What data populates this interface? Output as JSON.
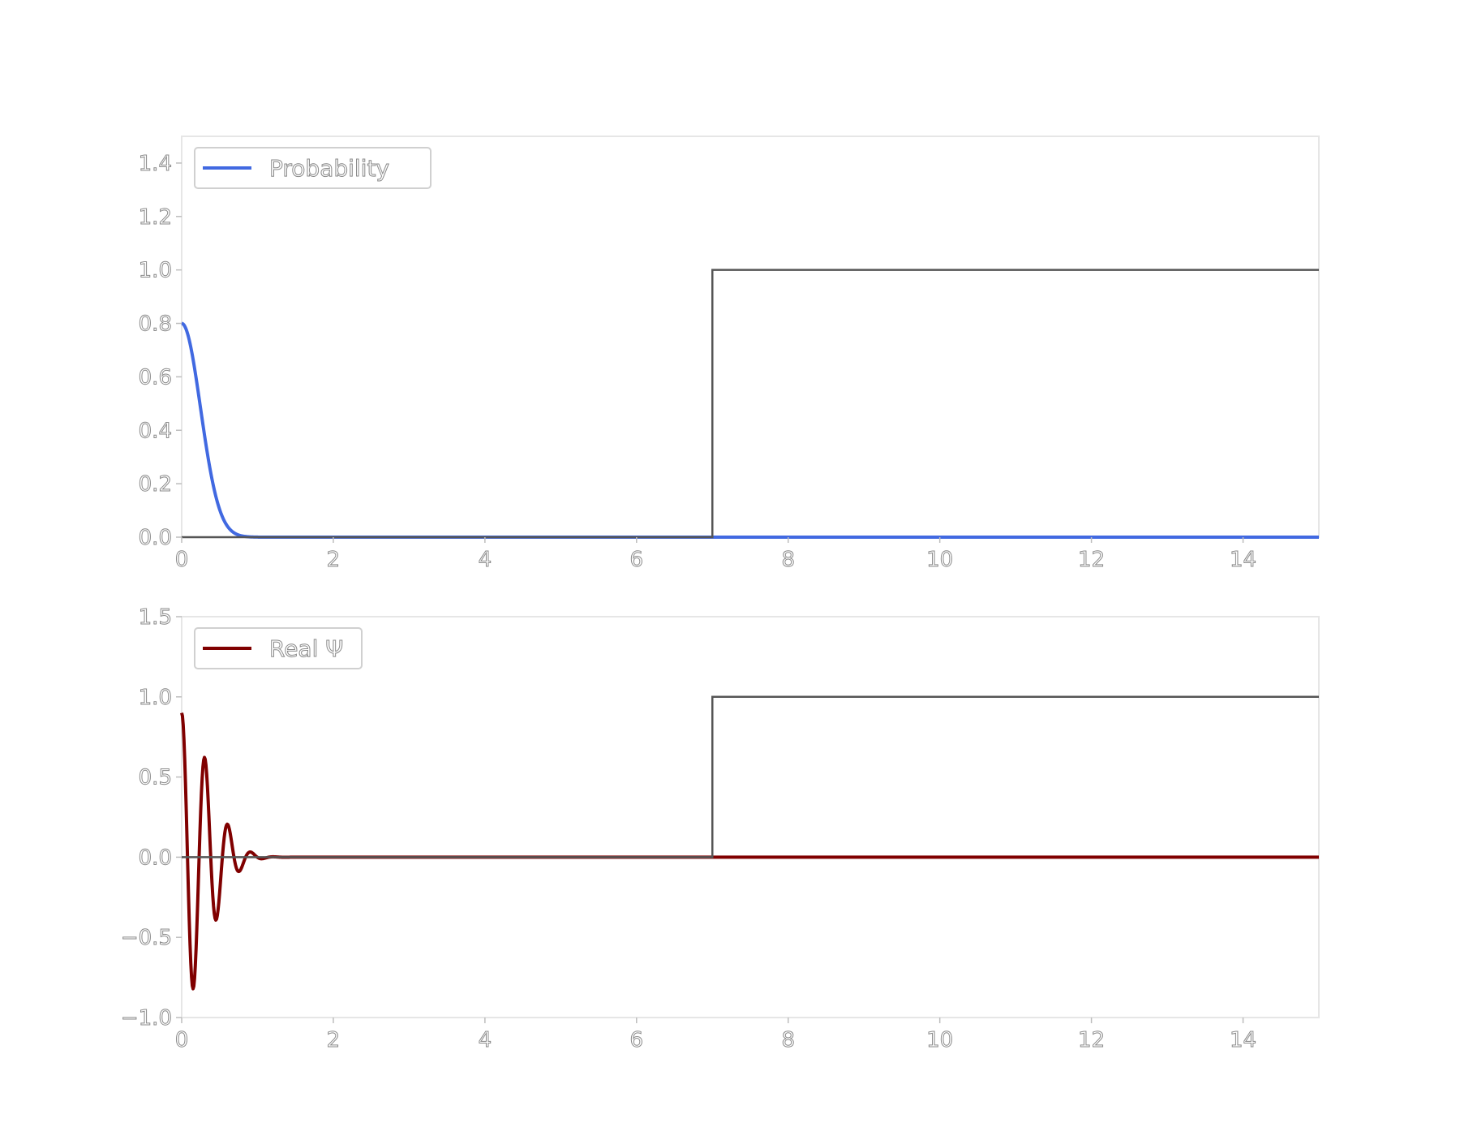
{
  "chart_data": [
    {
      "type": "line",
      "xlim": [
        0,
        15
      ],
      "ylim": [
        0,
        1.5
      ],
      "xticks": [
        0,
        2,
        4,
        6,
        8,
        10,
        12,
        14
      ],
      "yticks": [
        0.0,
        0.2,
        0.4,
        0.6,
        0.8,
        1.0,
        1.2,
        1.4
      ],
      "xtick_labels": [
        "0",
        "2",
        "4",
        "6",
        "8",
        "10",
        "12",
        "14"
      ],
      "ytick_labels": [
        "0.0",
        "0.2",
        "0.4",
        "0.6",
        "0.8",
        "1.0",
        "1.2",
        "1.4"
      ],
      "grid": false,
      "legend_position": "top-left",
      "series": [
        {
          "name": "Probability",
          "color": "#4169e1",
          "model": "gaussian",
          "amplitude": 0.8,
          "center": 0,
          "sigma": 0.35
        },
        {
          "color": "#555555",
          "model": "step",
          "step_x": 7,
          "step_value": 1.0,
          "base_value": 0.0
        }
      ]
    },
    {
      "type": "line",
      "xlim": [
        0,
        15
      ],
      "ylim": [
        -1.0,
        1.5
      ],
      "xticks": [
        0,
        2,
        4,
        6,
        8,
        10,
        12,
        14
      ],
      "yticks": [
        -1.0,
        -0.5,
        0.0,
        0.5,
        1.0,
        1.5
      ],
      "xtick_labels": [
        "0",
        "2",
        "4",
        "6",
        "8",
        "10",
        "12",
        "14"
      ],
      "ytick_labels": [
        "−1.0",
        "−0.5",
        "0.0",
        "0.5",
        "1.0",
        "1.5"
      ],
      "grid": false,
      "legend_position": "top-left",
      "series": [
        {
          "name": "Real Ψ",
          "color": "#800000",
          "model": "damped-cosine",
          "amplitude": 0.9,
          "sigma": 0.5,
          "wavenumber": 20.5
        },
        {
          "color": "#555555",
          "model": "step",
          "step_x": 7,
          "step_value": 1.0,
          "base_value": 0.0
        }
      ]
    }
  ]
}
